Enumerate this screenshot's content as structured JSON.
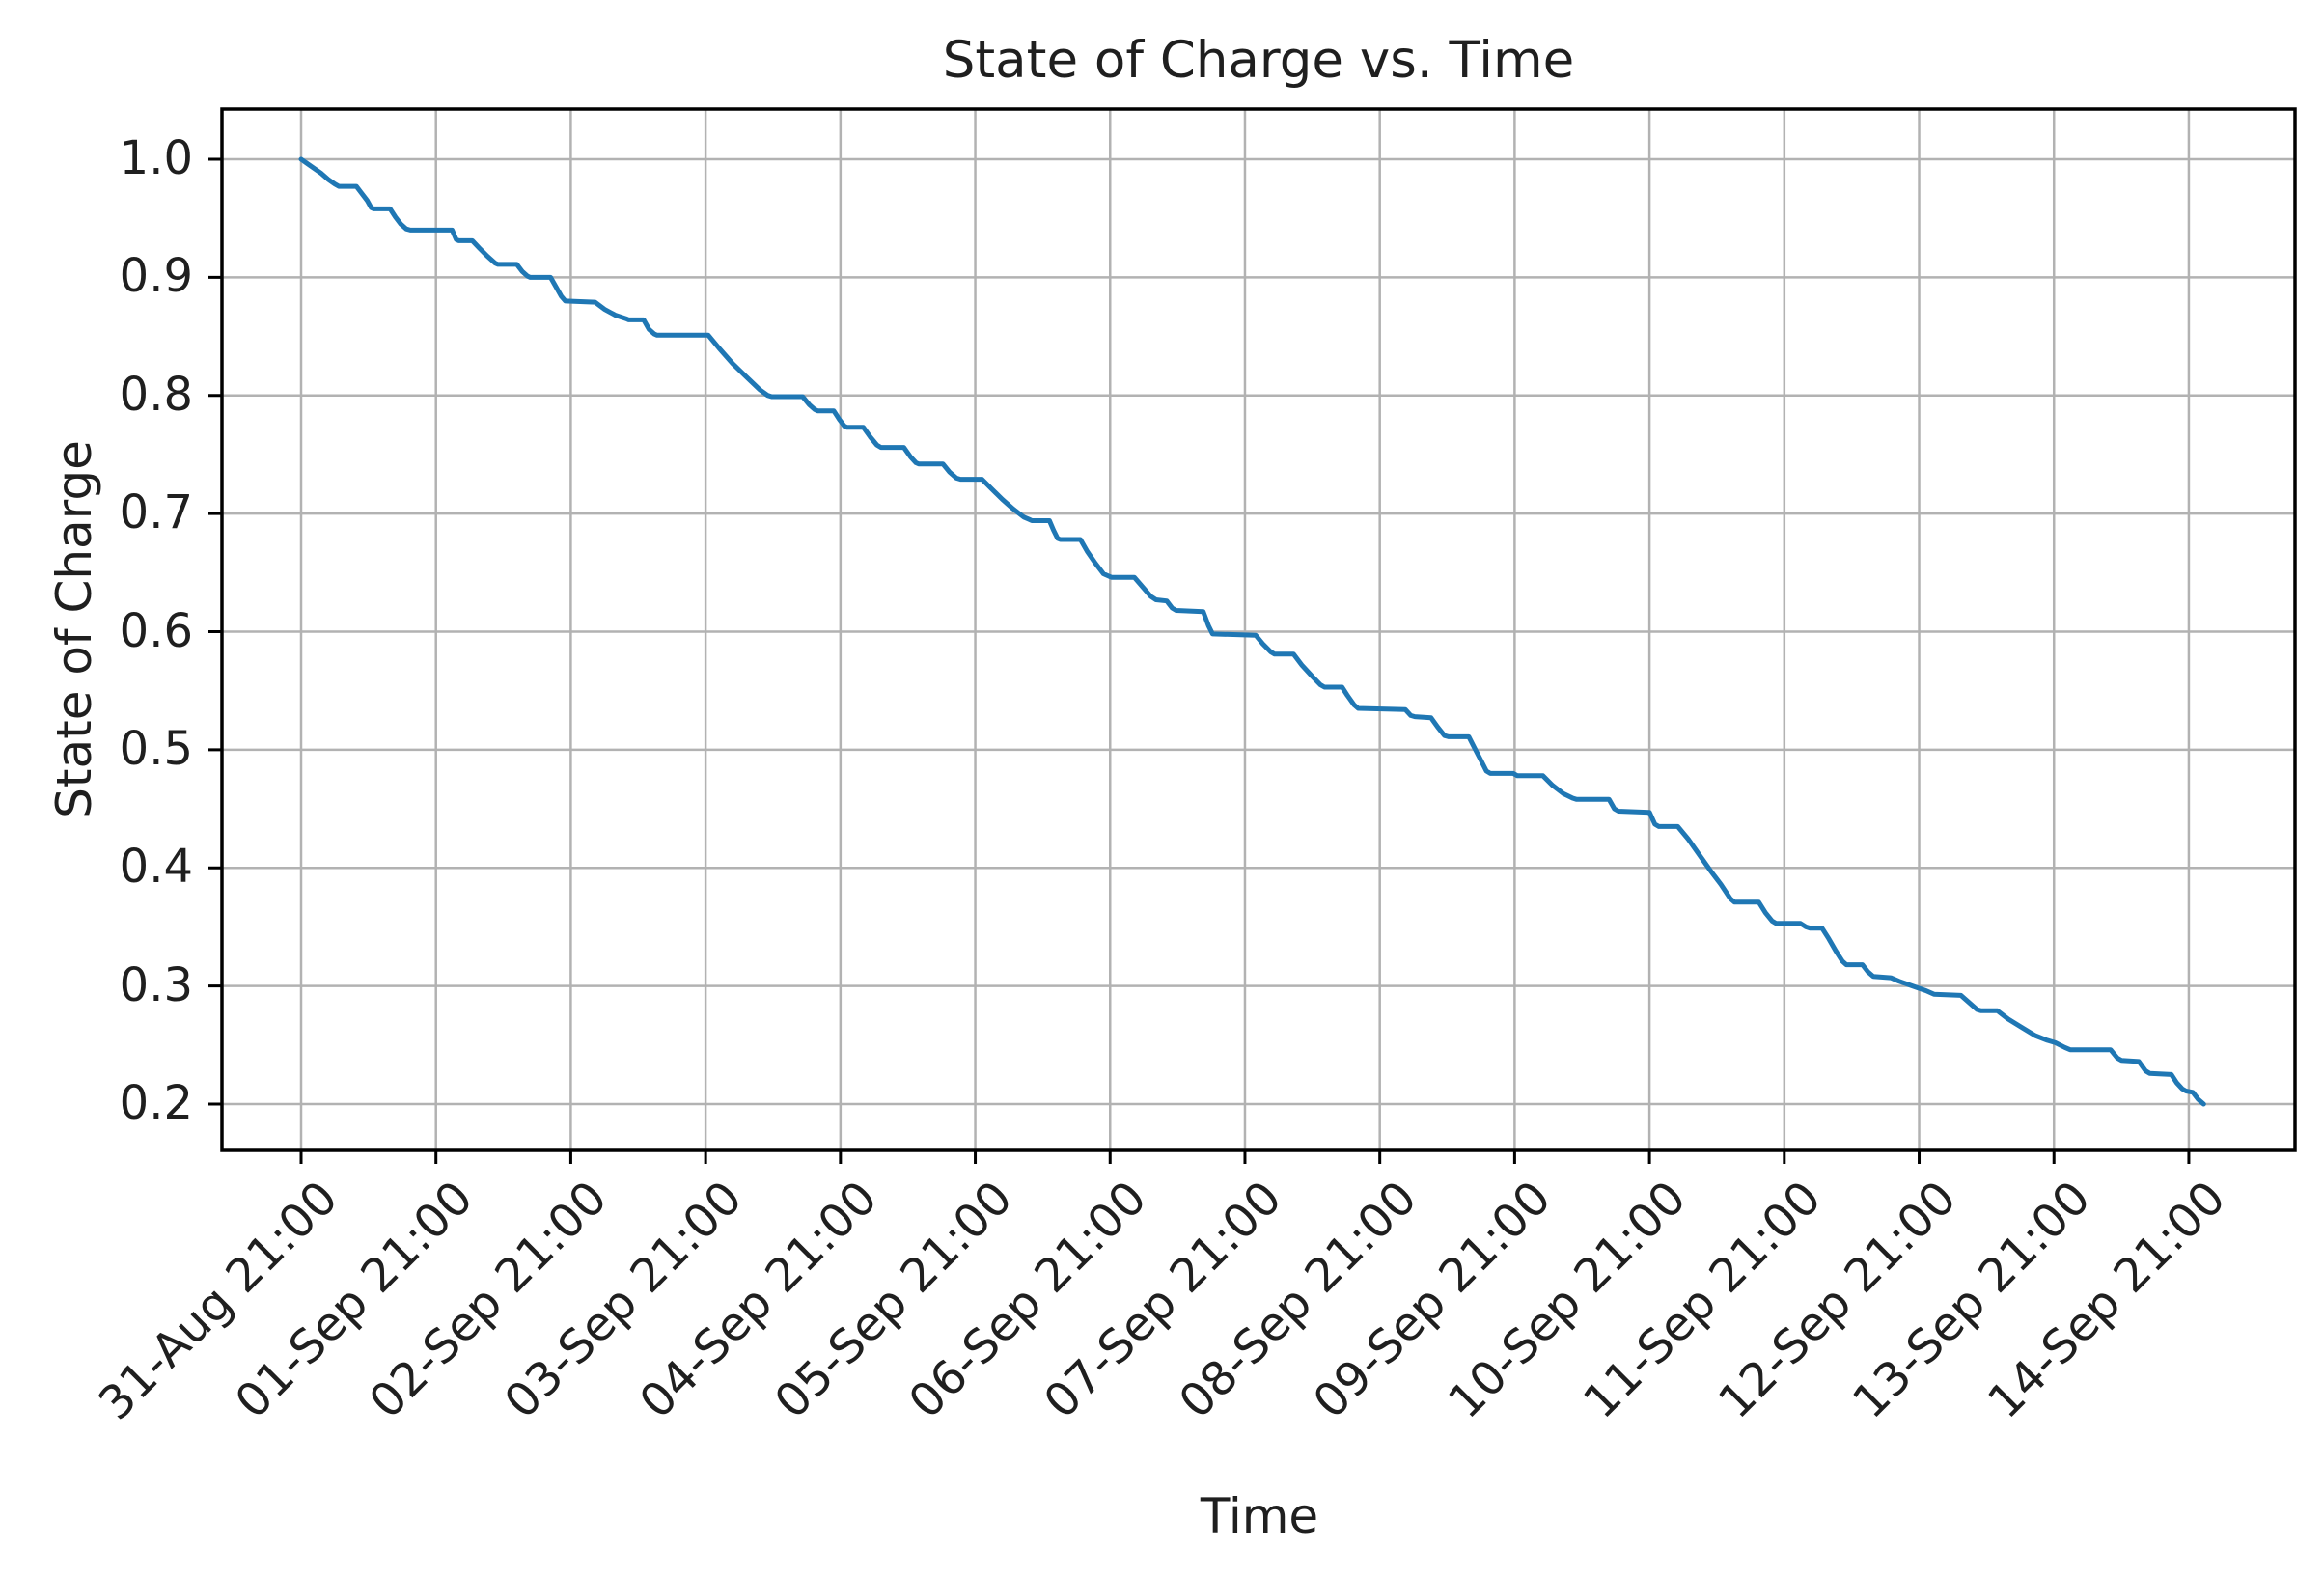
{
  "figure": {
    "title": "State of Charge vs. Time",
    "x_axis": {
      "label": "Time"
    },
    "y_axis": {
      "label": "State of Charge"
    },
    "colors": {
      "line": "#1f77b4",
      "grid": "#b2b2b2",
      "spine": "#000000",
      "text": "#1f1f1f",
      "background": "#ffffff"
    }
  },
  "chart_data": {
    "type": "line",
    "title": "State of Charge vs. Time",
    "xlabel": "Time",
    "ylabel": "State of Charge",
    "grid": true,
    "legend": false,
    "x_unit": "days after first tick (31-Aug 21:00), ticks every 1 day",
    "x_tick_days": [
      0,
      1,
      2,
      3,
      4,
      5,
      6,
      7,
      8,
      9,
      10,
      11,
      12,
      13,
      14
    ],
    "x_tick_labels": [
      "31-Aug 21:00",
      "01-Sep 21:00",
      "02-Sep 21:00",
      "03-Sep 21:00",
      "04-Sep 21:00",
      "05-Sep 21:00",
      "06-Sep 21:00",
      "07-Sep 21:00",
      "08-Sep 21:00",
      "09-Sep 21:00",
      "10-Sep 21:00",
      "11-Sep 21:00",
      "12-Sep 21:00",
      "13-Sep 21:00",
      "14-Sep 21:00"
    ],
    "y_ticks": [
      1.0,
      0.9,
      0.8,
      0.7,
      0.6,
      0.5,
      0.4,
      0.3,
      0.2
    ],
    "y_tick_labels": [
      "1.0",
      "0.9",
      "0.8",
      "0.7",
      "0.6",
      "0.5",
      "0.4",
      "0.3",
      "0.2"
    ],
    "ylim": [
      0.157,
      1.043
    ],
    "xlim_days": [
      -0.66,
      14.79
    ],
    "series": [
      {
        "name": "State of Charge",
        "color": "#1f77b4",
        "points": [
          [
            0.0,
            1.0
          ],
          [
            0.05,
            0.996
          ],
          [
            0.1,
            0.992
          ],
          [
            0.15,
            0.988
          ],
          [
            0.2,
            0.983
          ],
          [
            0.25,
            0.979
          ],
          [
            0.28,
            0.977
          ],
          [
            0.41,
            0.977
          ],
          [
            0.45,
            0.971
          ],
          [
            0.49,
            0.965
          ],
          [
            0.52,
            0.959
          ],
          [
            0.54,
            0.958
          ],
          [
            0.66,
            0.958
          ],
          [
            0.7,
            0.951
          ],
          [
            0.74,
            0.945
          ],
          [
            0.78,
            0.941
          ],
          [
            0.81,
            0.94
          ],
          [
            1.12,
            0.94
          ],
          [
            1.15,
            0.932
          ],
          [
            1.17,
            0.931
          ],
          [
            1.27,
            0.931
          ],
          [
            1.32,
            0.925
          ],
          [
            1.38,
            0.918
          ],
          [
            1.44,
            0.912
          ],
          [
            1.46,
            0.911
          ],
          [
            1.6,
            0.911
          ],
          [
            1.64,
            0.905
          ],
          [
            1.68,
            0.901
          ],
          [
            1.7,
            0.9
          ],
          [
            1.85,
            0.9
          ],
          [
            1.89,
            0.892
          ],
          [
            1.93,
            0.884
          ],
          [
            1.96,
            0.88
          ],
          [
            2.18,
            0.879
          ],
          [
            2.25,
            0.873
          ],
          [
            2.33,
            0.868
          ],
          [
            2.41,
            0.865
          ],
          [
            2.43,
            0.864
          ],
          [
            2.54,
            0.864
          ],
          [
            2.58,
            0.856
          ],
          [
            2.62,
            0.852
          ],
          [
            2.64,
            0.851
          ],
          [
            3.02,
            0.851
          ],
          [
            3.1,
            0.84
          ],
          [
            3.2,
            0.827
          ],
          [
            3.3,
            0.816
          ],
          [
            3.4,
            0.805
          ],
          [
            3.46,
            0.8
          ],
          [
            3.49,
            0.799
          ],
          [
            3.72,
            0.799
          ],
          [
            3.77,
            0.792
          ],
          [
            3.81,
            0.788
          ],
          [
            3.83,
            0.787
          ],
          [
            3.95,
            0.787
          ],
          [
            3.99,
            0.78
          ],
          [
            4.03,
            0.774
          ],
          [
            4.05,
            0.773
          ],
          [
            4.17,
            0.773
          ],
          [
            4.22,
            0.765
          ],
          [
            4.27,
            0.758
          ],
          [
            4.3,
            0.756
          ],
          [
            4.47,
            0.756
          ],
          [
            4.52,
            0.748
          ],
          [
            4.56,
            0.743
          ],
          [
            4.58,
            0.742
          ],
          [
            4.76,
            0.742
          ],
          [
            4.81,
            0.735
          ],
          [
            4.86,
            0.73
          ],
          [
            4.89,
            0.729
          ],
          [
            5.05,
            0.729
          ],
          [
            5.12,
            0.721
          ],
          [
            5.2,
            0.712
          ],
          [
            5.28,
            0.704
          ],
          [
            5.36,
            0.697
          ],
          [
            5.4,
            0.695
          ],
          [
            5.42,
            0.694
          ],
          [
            5.55,
            0.694
          ],
          [
            5.58,
            0.686
          ],
          [
            5.61,
            0.679
          ],
          [
            5.63,
            0.678
          ],
          [
            5.78,
            0.678
          ],
          [
            5.83,
            0.668
          ],
          [
            5.89,
            0.658
          ],
          [
            5.95,
            0.649
          ],
          [
            5.99,
            0.647
          ],
          [
            6.01,
            0.646
          ],
          [
            6.18,
            0.646
          ],
          [
            6.24,
            0.638
          ],
          [
            6.3,
            0.63
          ],
          [
            6.34,
            0.627
          ],
          [
            6.42,
            0.626
          ],
          [
            6.46,
            0.62
          ],
          [
            6.49,
            0.618
          ],
          [
            6.69,
            0.617
          ],
          [
            6.73,
            0.605
          ],
          [
            6.76,
            0.598
          ],
          [
            7.08,
            0.597
          ],
          [
            7.13,
            0.59
          ],
          [
            7.19,
            0.583
          ],
          [
            7.22,
            0.581
          ],
          [
            7.36,
            0.581
          ],
          [
            7.42,
            0.572
          ],
          [
            7.5,
            0.562
          ],
          [
            7.56,
            0.555
          ],
          [
            7.59,
            0.553
          ],
          [
            7.72,
            0.553
          ],
          [
            7.76,
            0.546
          ],
          [
            7.81,
            0.538
          ],
          [
            7.84,
            0.535
          ],
          [
            8.19,
            0.534
          ],
          [
            8.23,
            0.529
          ],
          [
            8.26,
            0.528
          ],
          [
            8.38,
            0.527
          ],
          [
            8.43,
            0.519
          ],
          [
            8.48,
            0.512
          ],
          [
            8.51,
            0.511
          ],
          [
            8.66,
            0.511
          ],
          [
            8.7,
            0.502
          ],
          [
            8.75,
            0.491
          ],
          [
            8.79,
            0.482
          ],
          [
            8.82,
            0.48
          ],
          [
            8.99,
            0.48
          ],
          [
            9.02,
            0.478
          ],
          [
            9.21,
            0.478
          ],
          [
            9.28,
            0.47
          ],
          [
            9.36,
            0.463
          ],
          [
            9.43,
            0.459
          ],
          [
            9.46,
            0.458
          ],
          [
            9.7,
            0.458
          ],
          [
            9.74,
            0.45
          ],
          [
            9.77,
            0.448
          ],
          [
            10.0,
            0.447
          ],
          [
            10.04,
            0.437
          ],
          [
            10.07,
            0.435
          ],
          [
            10.21,
            0.435
          ],
          [
            10.29,
            0.424
          ],
          [
            10.37,
            0.411
          ],
          [
            10.45,
            0.398
          ],
          [
            10.53,
            0.386
          ],
          [
            10.6,
            0.374
          ],
          [
            10.63,
            0.371
          ],
          [
            10.81,
            0.371
          ],
          [
            10.86,
            0.362
          ],
          [
            10.91,
            0.355
          ],
          [
            10.94,
            0.353
          ],
          [
            11.12,
            0.353
          ],
          [
            11.16,
            0.35
          ],
          [
            11.19,
            0.349
          ],
          [
            11.28,
            0.349
          ],
          [
            11.33,
            0.34
          ],
          [
            11.38,
            0.33
          ],
          [
            11.43,
            0.321
          ],
          [
            11.46,
            0.318
          ],
          [
            11.58,
            0.318
          ],
          [
            11.62,
            0.312
          ],
          [
            11.66,
            0.308
          ],
          [
            11.79,
            0.307
          ],
          [
            11.85,
            0.304
          ],
          [
            11.95,
            0.3
          ],
          [
            12.05,
            0.296
          ],
          [
            12.11,
            0.293
          ],
          [
            12.31,
            0.292
          ],
          [
            12.37,
            0.286
          ],
          [
            12.43,
            0.28
          ],
          [
            12.46,
            0.279
          ],
          [
            12.58,
            0.279
          ],
          [
            12.66,
            0.272
          ],
          [
            12.76,
            0.265
          ],
          [
            12.86,
            0.258
          ],
          [
            12.95,
            0.254
          ],
          [
            13.01,
            0.252
          ],
          [
            13.08,
            0.248
          ],
          [
            13.12,
            0.246
          ],
          [
            13.42,
            0.246
          ],
          [
            13.47,
            0.239
          ],
          [
            13.5,
            0.237
          ],
          [
            13.63,
            0.236
          ],
          [
            13.68,
            0.228
          ],
          [
            13.71,
            0.226
          ],
          [
            13.87,
            0.225
          ],
          [
            13.91,
            0.218
          ],
          [
            13.95,
            0.213
          ],
          [
            13.98,
            0.211
          ],
          [
            14.03,
            0.21
          ],
          [
            14.07,
            0.204
          ],
          [
            14.11,
            0.2
          ]
        ]
      }
    ]
  }
}
